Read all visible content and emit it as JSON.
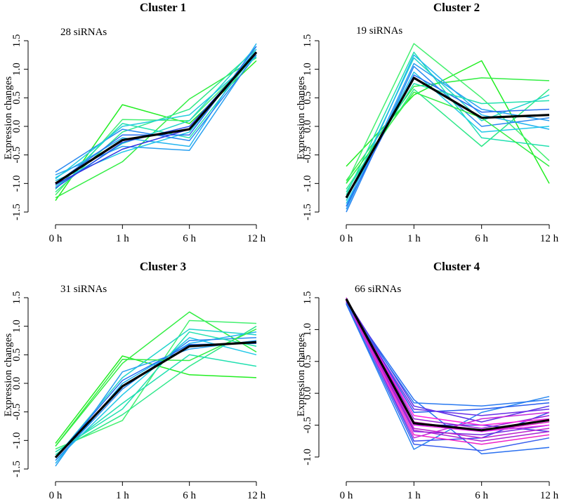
{
  "figure": {
    "ylabel": "Expression changes"
  },
  "chart_data": [
    {
      "type": "line",
      "title": "Cluster 1",
      "count_label": "28 siRNAs",
      "ylabel": "Expression changes",
      "categories": [
        "0 h",
        "1 h",
        "6 h",
        "12 h"
      ],
      "yticks": [
        "-1.5",
        "-1.0",
        "-0.5",
        "0.0",
        "0.5",
        "1.0",
        "1.5"
      ],
      "ylim": [
        -1.5,
        1.5
      ],
      "mean": [
        -1.0,
        -0.24,
        -0.05,
        1.3
      ],
      "series": [
        {
          "color": "#22ee22",
          "values": [
            -1.3,
            0.38,
            0.05,
            1.15
          ]
        },
        {
          "color": "#33ee44",
          "values": [
            -1.25,
            -0.62,
            0.48,
            1.2
          ]
        },
        {
          "color": "#44f070",
          "values": [
            -1.2,
            0.12,
            0.1,
            1.25
          ]
        },
        {
          "color": "#2ee88a",
          "values": [
            -1.15,
            -0.1,
            0.3,
            1.35
          ]
        },
        {
          "color": "#22e0b0",
          "values": [
            -1.1,
            0.05,
            -0.2,
            1.3
          ]
        },
        {
          "color": "#22d4cc",
          "values": [
            -1.05,
            -0.3,
            0.1,
            1.4
          ]
        },
        {
          "color": "#22c8e8",
          "values": [
            -0.95,
            -0.45,
            -0.1,
            1.35
          ]
        },
        {
          "color": "#22b4f0",
          "values": [
            -0.9,
            -0.2,
            -0.35,
            1.45
          ]
        },
        {
          "color": "#2aa0f0",
          "values": [
            -0.85,
            -0.35,
            -0.42,
            1.3
          ]
        },
        {
          "color": "#2a88f0",
          "values": [
            -0.8,
            -0.05,
            -0.25,
            1.25
          ]
        },
        {
          "color": "#2a6ef0",
          "values": [
            -1.0,
            -0.15,
            -0.15,
            1.4
          ]
        },
        {
          "color": "#2a50ee",
          "values": [
            -1.08,
            -0.28,
            0.0,
            1.3
          ]
        },
        {
          "color": "#3030e0",
          "values": [
            -1.02,
            -0.4,
            -0.05,
            1.28
          ]
        },
        {
          "color": "#22ccdd",
          "values": [
            -0.92,
            0.0,
            0.2,
            1.22
          ]
        }
      ]
    },
    {
      "type": "line",
      "title": "Cluster 2",
      "count_label": "19 siRNAs",
      "ylabel": "Expression changes",
      "categories": [
        "0 h",
        "1 h",
        "6 h",
        "12 h"
      ],
      "yticks": [
        "-1.5",
        "-1.0",
        "-0.5",
        "0.0",
        "0.5",
        "1.0",
        "1.5"
      ],
      "ylim": [
        -1.5,
        1.5
      ],
      "mean": [
        -1.25,
        0.85,
        0.15,
        0.2
      ],
      "series": [
        {
          "color": "#22ee22",
          "values": [
            -0.7,
            0.55,
            1.15,
            -1.0
          ]
        },
        {
          "color": "#33ee44",
          "values": [
            -0.95,
            0.7,
            0.85,
            0.8
          ]
        },
        {
          "color": "#44f070",
          "values": [
            -1.0,
            1.45,
            0.5,
            -0.6
          ]
        },
        {
          "color": "#2ee88a",
          "values": [
            -1.1,
            0.65,
            -0.35,
            0.65
          ]
        },
        {
          "color": "#22e0b0",
          "values": [
            -1.2,
            1.3,
            -0.2,
            -0.35
          ]
        },
        {
          "color": "#22d4cc",
          "values": [
            -1.3,
            1.2,
            0.1,
            0.55
          ]
        },
        {
          "color": "#22c8e8",
          "values": [
            -1.35,
            0.95,
            -0.1,
            0.0
          ]
        },
        {
          "color": "#22b4f0",
          "values": [
            -1.4,
            1.25,
            0.2,
            -0.05
          ]
        },
        {
          "color": "#2aa0f0",
          "values": [
            -1.45,
            1.1,
            0.3,
            0.1
          ]
        },
        {
          "color": "#2a88f0",
          "values": [
            -1.5,
            1.05,
            0.0,
            0.15
          ]
        },
        {
          "color": "#2a6ef0",
          "values": [
            -1.4,
            0.9,
            0.25,
            0.3
          ]
        },
        {
          "color": "#33ee44",
          "values": [
            -1.0,
            0.6,
            0.15,
            -0.7
          ]
        },
        {
          "color": "#22e0b0",
          "values": [
            -1.15,
            0.75,
            0.4,
            0.45
          ]
        }
      ]
    },
    {
      "type": "line",
      "title": "Cluster 3",
      "count_label": "31 siRNAs",
      "ylabel": "Expression changes",
      "categories": [
        "0 h",
        "1 h",
        "6 h",
        "12 h"
      ],
      "yticks": [
        "-1.5",
        "-1.0",
        "-0.5",
        "0.0",
        "0.5",
        "1.0",
        "1.5"
      ],
      "ylim": [
        -1.5,
        1.5
      ],
      "mean": [
        -1.3,
        -0.05,
        0.65,
        0.72
      ],
      "series": [
        {
          "color": "#22ee22",
          "values": [
            -1.05,
            0.48,
            0.15,
            0.1
          ]
        },
        {
          "color": "#33ee44",
          "values": [
            -1.1,
            0.35,
            1.25,
            0.55
          ]
        },
        {
          "color": "#44f070",
          "values": [
            -1.15,
            -0.65,
            1.1,
            1.05
          ]
        },
        {
          "color": "#2ee88a",
          "values": [
            -1.2,
            -0.55,
            0.3,
            1.0
          ]
        },
        {
          "color": "#22e0b0",
          "values": [
            -1.25,
            -0.35,
            0.5,
            0.3
          ]
        },
        {
          "color": "#22d4cc",
          "values": [
            -1.3,
            0.1,
            0.95,
            0.85
          ]
        },
        {
          "color": "#22c8e8",
          "values": [
            -1.35,
            -0.2,
            0.8,
            0.5
          ]
        },
        {
          "color": "#22b4f0",
          "values": [
            -1.4,
            0.0,
            0.7,
            0.9
          ]
        },
        {
          "color": "#2aa0f0",
          "values": [
            -1.45,
            0.2,
            0.6,
            0.75
          ]
        },
        {
          "color": "#2a88f0",
          "values": [
            -1.35,
            -0.1,
            0.75,
            0.8
          ]
        },
        {
          "color": "#2a6ef0",
          "values": [
            -1.3,
            0.05,
            0.68,
            0.7
          ]
        },
        {
          "color": "#33ee44",
          "values": [
            -1.1,
            0.42,
            0.4,
            0.95
          ]
        },
        {
          "color": "#22e0b0",
          "values": [
            -1.2,
            -0.45,
            0.9,
            0.65
          ]
        }
      ]
    },
    {
      "type": "line",
      "title": "Cluster 4",
      "count_label": "66 siRNAs",
      "ylabel": "Expression changes",
      "categories": [
        "0 h",
        "1 h",
        "6 h",
        "12 h"
      ],
      "yticks": [
        "-1.0",
        "-0.5",
        "0.0",
        "0.5",
        "1.0",
        "1.5"
      ],
      "ylim": [
        -1.1,
        1.5
      ],
      "mean": [
        1.48,
        -0.47,
        -0.58,
        -0.42
      ],
      "series": [
        {
          "color": "#2a88f0",
          "values": [
            1.4,
            -0.88,
            -0.3,
            -0.05
          ]
        },
        {
          "color": "#2a70f0",
          "values": [
            1.42,
            -0.1,
            -0.95,
            -0.85
          ]
        },
        {
          "color": "#2a5cee",
          "values": [
            1.44,
            -0.3,
            -0.25,
            -0.15
          ]
        },
        {
          "color": "#3a4aee",
          "values": [
            1.45,
            -0.75,
            -0.7,
            -0.3
          ]
        },
        {
          "color": "#4a3aea",
          "values": [
            1.46,
            -0.5,
            -0.5,
            -0.6
          ]
        },
        {
          "color": "#5a30e6",
          "values": [
            1.47,
            -0.2,
            -0.45,
            -0.2
          ]
        },
        {
          "color": "#7a28e0",
          "values": [
            1.48,
            -0.6,
            -0.65,
            -0.5
          ]
        },
        {
          "color": "#9a22d8",
          "values": [
            1.49,
            -0.4,
            -0.55,
            -0.35
          ]
        },
        {
          "color": "#bb22cc",
          "values": [
            1.5,
            -0.55,
            -0.7,
            -0.55
          ]
        },
        {
          "color": "#d822c0",
          "values": [
            1.48,
            -0.45,
            -0.6,
            -0.45
          ]
        },
        {
          "color": "#ee22c8",
          "values": [
            1.47,
            -0.65,
            -0.8,
            -0.65
          ]
        },
        {
          "color": "#ff22dd",
          "values": [
            1.46,
            -0.35,
            -0.5,
            -0.4
          ]
        },
        {
          "color": "#ee33ee",
          "values": [
            1.45,
            -0.5,
            -0.6,
            -0.5
          ]
        },
        {
          "color": "#c828d8",
          "values": [
            1.44,
            -0.7,
            -0.4,
            -0.3
          ]
        },
        {
          "color": "#6a30e8",
          "values": [
            1.43,
            -0.25,
            -0.35,
            -0.25
          ]
        },
        {
          "color": "#3a60ee",
          "values": [
            1.41,
            -0.8,
            -0.9,
            -0.7
          ]
        },
        {
          "color": "#2a7af0",
          "values": [
            1.4,
            -0.15,
            -0.2,
            -0.1
          ]
        },
        {
          "color": "#aa22d2",
          "values": [
            1.47,
            -0.58,
            -0.75,
            -0.6
          ]
        }
      ]
    }
  ]
}
